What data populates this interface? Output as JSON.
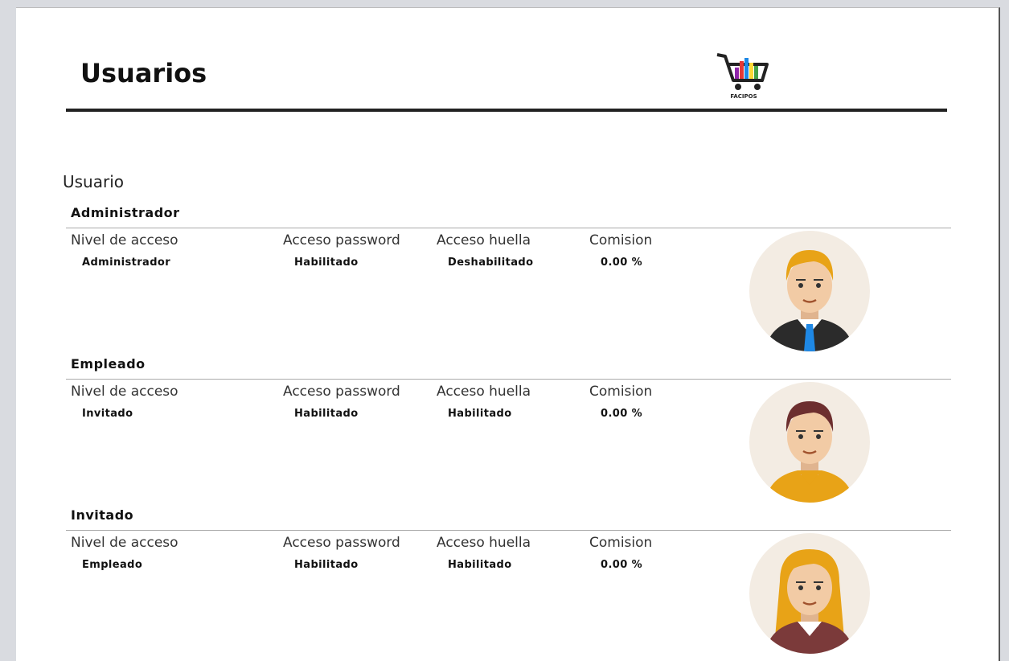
{
  "header": {
    "title": "Usuarios",
    "logo_text": "FACIPOS"
  },
  "section_label": "Usuario",
  "field_labels": [
    "Nivel de acceso",
    "Acceso password",
    "Acceso huella",
    "Comision"
  ],
  "users": [
    {
      "name": "Administrador",
      "values": [
        "Administrador",
        "Habilitado",
        "Deshabilitado",
        "0.00 %"
      ]
    },
    {
      "name": "Empleado",
      "values": [
        "Invitado",
        "Habilitado",
        "Habilitado",
        "0.00 %"
      ]
    },
    {
      "name": "Invitado",
      "values": [
        "Empleado",
        "Habilitado",
        "Habilitado",
        "0.00 %"
      ]
    }
  ]
}
